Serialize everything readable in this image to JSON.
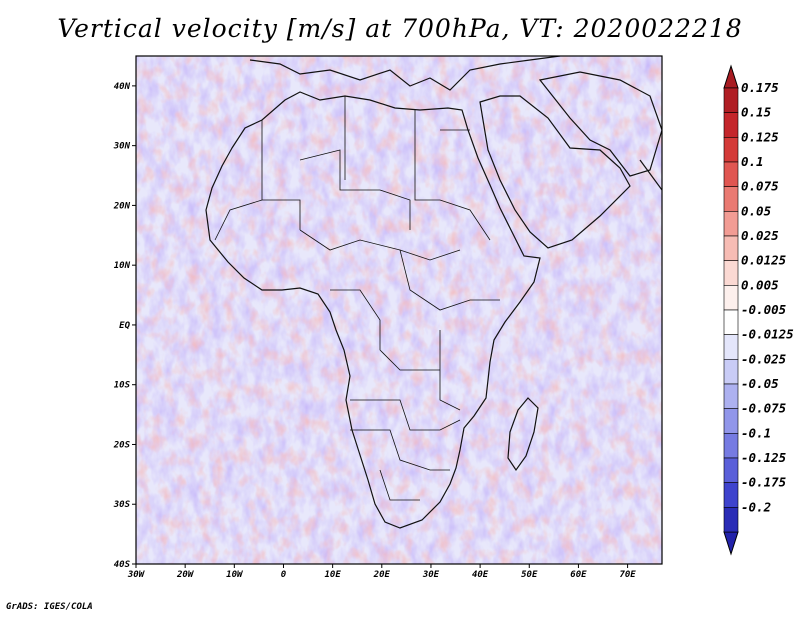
{
  "title": "Vertical velocity [m/s] at 700hPa, VT: 2020022218",
  "credit": "GrADS: IGES/COLA",
  "map": {
    "region": "Africa",
    "lon_range": [
      -30,
      77
    ],
    "lat_range": [
      -40,
      45
    ],
    "lon_ticks": [
      {
        "value": -30,
        "label": "30W"
      },
      {
        "value": -20,
        "label": "20W"
      },
      {
        "value": -10,
        "label": "10W"
      },
      {
        "value": 0,
        "label": "0"
      },
      {
        "value": 10,
        "label": "10E"
      },
      {
        "value": 20,
        "label": "20E"
      },
      {
        "value": 30,
        "label": "30E"
      },
      {
        "value": 40,
        "label": "40E"
      },
      {
        "value": 50,
        "label": "50E"
      },
      {
        "value": 60,
        "label": "60E"
      },
      {
        "value": 70,
        "label": "70E"
      }
    ],
    "lat_ticks": [
      {
        "value": 40,
        "label": "40N"
      },
      {
        "value": 30,
        "label": "30N"
      },
      {
        "value": 20,
        "label": "20N"
      },
      {
        "value": 10,
        "label": "10N"
      },
      {
        "value": 0,
        "label": "EQ"
      },
      {
        "value": -10,
        "label": "10S"
      },
      {
        "value": -20,
        "label": "20S"
      },
      {
        "value": -30,
        "label": "30S"
      },
      {
        "value": -40,
        "label": "40S"
      }
    ]
  },
  "colorbar": {
    "units": "m/s",
    "levels": [
      {
        "label": "0.175",
        "color": "#b01e24"
      },
      {
        "label": "0.15",
        "color": "#c4262b"
      },
      {
        "label": "0.125",
        "color": "#d43a38"
      },
      {
        "label": "0.1",
        "color": "#e05651"
      },
      {
        "label": "0.075",
        "color": "#ea7a72"
      },
      {
        "label": "0.05",
        "color": "#f29c94"
      },
      {
        "label": "0.025",
        "color": "#f7bcb4"
      },
      {
        "label": "0.0125",
        "color": "#fbd9d3"
      },
      {
        "label": "0.005",
        "color": "#fdf0ed"
      },
      {
        "label": "-0.005",
        "color": "#ffffff"
      },
      {
        "label": "-0.0125",
        "color": "#e4e6fb"
      },
      {
        "label": "-0.025",
        "color": "#c9ccf6"
      },
      {
        "label": "-0.05",
        "color": "#adb1f0"
      },
      {
        "label": "-0.075",
        "color": "#9196ea"
      },
      {
        "label": "-0.1",
        "color": "#767be2"
      },
      {
        "label": "-0.125",
        "color": "#5a5fd9"
      },
      {
        "label": "-0.175",
        "color": "#3e43cd"
      },
      {
        "label": "-0.2",
        "color": "#2a2cb6"
      }
    ],
    "top_triangle_color": "#a81c22",
    "bottom_triangle_color": "#2222aa"
  }
}
